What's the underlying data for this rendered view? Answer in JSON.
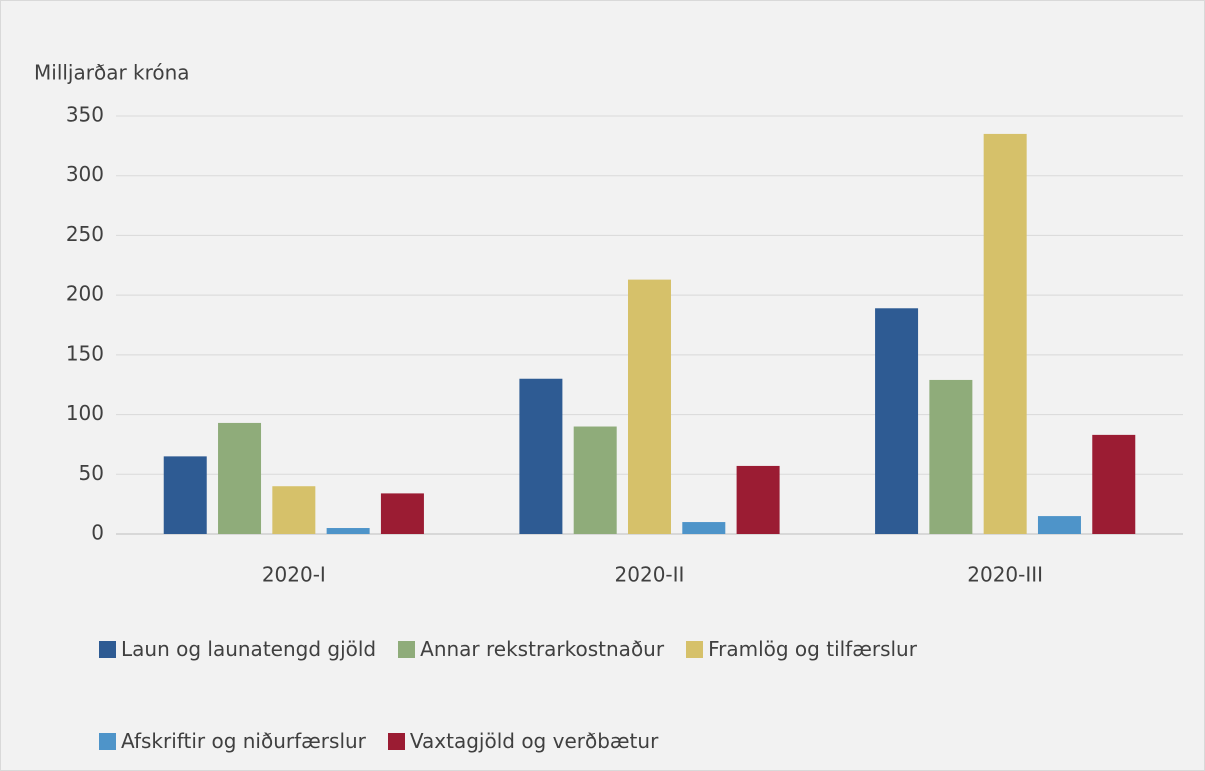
{
  "chart_data": {
    "type": "bar",
    "title": "Milljarðar króna",
    "categories": [
      "2020-I",
      "2020-II",
      "2020-III"
    ],
    "series": [
      {
        "name": "Laun og launatengd gjöld",
        "color": "#2e5b93",
        "values": [
          65,
          130,
          189
        ]
      },
      {
        "name": "Annar rekstrarkostnaður",
        "color": "#8fac7a",
        "values": [
          93,
          90,
          129
        ]
      },
      {
        "name": "Framlög og tilfærslur",
        "color": "#d6c16a",
        "values": [
          40,
          213,
          335
        ]
      },
      {
        "name": "Afskriftir og niðurfærslur",
        "color": "#4e94c9",
        "values": [
          5,
          10,
          15
        ]
      },
      {
        "name": "Vaxtagjöld og verðbætur",
        "color": "#9b1c33",
        "values": [
          34,
          57,
          83
        ]
      }
    ],
    "ylim": [
      0,
      350
    ],
    "yticks": [
      0,
      50,
      100,
      150,
      200,
      250,
      300,
      350
    ],
    "grid": true,
    "legend": "bottom"
  }
}
